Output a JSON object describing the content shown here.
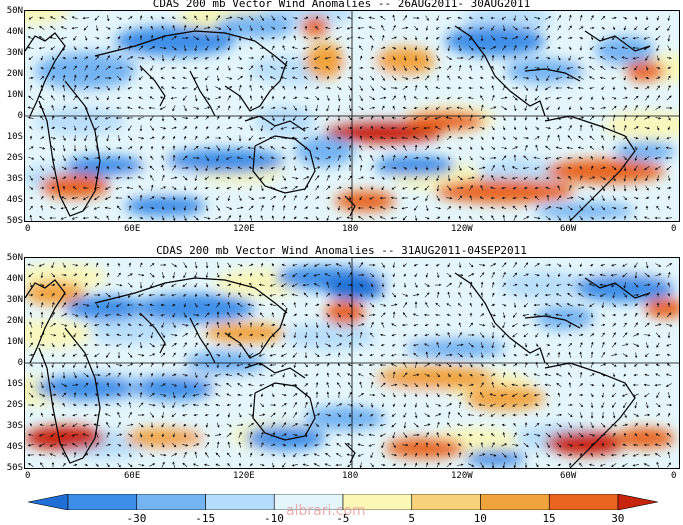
{
  "panels": [
    {
      "title": "CDAS 200 mb Vector Wind Anomalies -- 26AUG2011- 30AUG2011"
    },
    {
      "title": "CDAS 200 mb Vector Wind Anomalies -- 31AUG2011-04SEP2011"
    }
  ],
  "lat_labels": [
    "50N",
    "40N",
    "30N",
    "20N",
    "10N",
    "0",
    "10S",
    "20S",
    "30S",
    "40S",
    "50S"
  ],
  "lon_labels": [
    "0",
    "60E",
    "120E",
    "180",
    "120W",
    "60W",
    "0"
  ],
  "colorbar": {
    "labels": [
      "-30",
      "-15",
      "-10",
      "-5",
      "5",
      "10",
      "15",
      "30"
    ],
    "colors": [
      "#1f6fd6",
      "#3d8ee8",
      "#74b4f3",
      "#b4dcfb",
      "#e4f6fb",
      "#fbf7b4",
      "#f8d27a",
      "#f1a33c",
      "#e8641f",
      "#c8240d"
    ]
  },
  "watermark": "albrari.com"
}
